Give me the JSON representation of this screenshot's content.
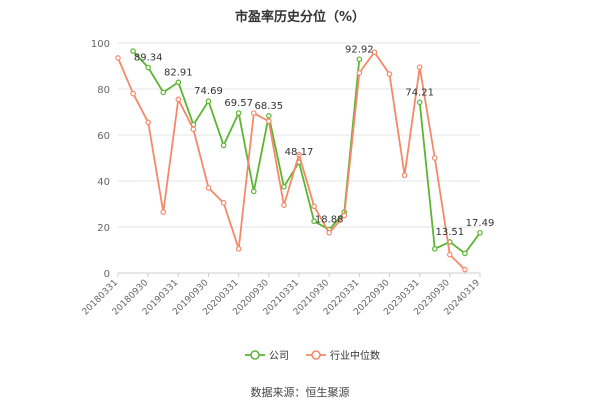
{
  "chart_data": {
    "type": "line",
    "title": "市盈率历史分位（%）",
    "source": "数据来源：恒生聚源",
    "xlabel": "",
    "ylabel": "",
    "ylim": [
      0,
      100
    ],
    "y_ticks": [
      "0",
      "20",
      "40",
      "60",
      "80",
      "100"
    ],
    "x_tick_labels": [
      "20180331",
      "20180930",
      "20190331",
      "20190930",
      "20200331",
      "20200930",
      "20210331",
      "20210930",
      "20220331",
      "20220930",
      "20230331",
      "20230930",
      "20240319"
    ],
    "grid": true,
    "legend_position": "bottom",
    "series": [
      {
        "name": "公司",
        "color": "#5cb531",
        "values": [
          null,
          96.5,
          89.34,
          78.5,
          82.91,
          64.5,
          74.69,
          55.5,
          69.57,
          35.5,
          68.35,
          37.5,
          48.17,
          22.5,
          18.88,
          26.5,
          92.92,
          null,
          null,
          null,
          74.21,
          10.5,
          13.51,
          8.5,
          17.49
        ]
      },
      {
        "name": "行业中位数",
        "color": "#f4896a",
        "values": [
          93.5,
          78.0,
          65.5,
          26.5,
          75.5,
          62.5,
          37.0,
          30.5,
          10.5,
          69.5,
          66.0,
          29.5,
          51.5,
          29.0,
          17.5,
          25.0,
          87.0,
          96.0,
          86.5,
          42.5,
          89.5,
          50.0,
          8.0,
          1.5,
          null
        ]
      }
    ],
    "data_labels": [
      {
        "series": 0,
        "index": 2,
        "text": "89.34"
      },
      {
        "series": 0,
        "index": 4,
        "text": "82.91"
      },
      {
        "series": 0,
        "index": 6,
        "text": "74.69"
      },
      {
        "series": 0,
        "index": 8,
        "text": "69.57"
      },
      {
        "series": 0,
        "index": 10,
        "text": "68.35"
      },
      {
        "series": 0,
        "index": 12,
        "text": "48.17"
      },
      {
        "series": 0,
        "index": 14,
        "text": "18.88"
      },
      {
        "series": 0,
        "index": 16,
        "text": "92.92"
      },
      {
        "series": 0,
        "index": 20,
        "text": "74.21"
      },
      {
        "series": 0,
        "index": 22,
        "text": "13.51"
      },
      {
        "series": 0,
        "index": 24,
        "text": "17.49"
      }
    ]
  }
}
